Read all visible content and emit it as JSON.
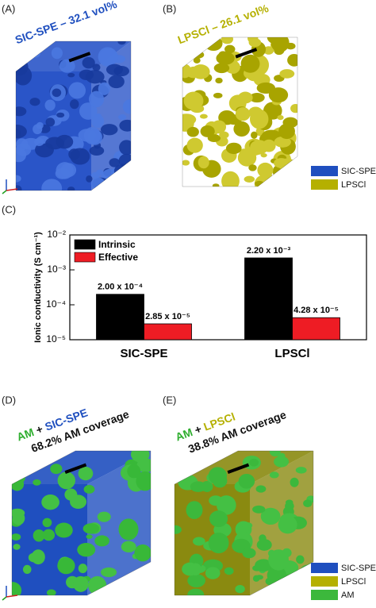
{
  "chart_data": {
    "type": "bar",
    "panel_label": "(C)",
    "y_label": "Ionic conductivity (S cm⁻¹)",
    "log_scale": true,
    "categories": [
      "SIC-SPE",
      "LPSCl"
    ],
    "series": [
      {
        "name": "Intrinsic",
        "color": "#000000",
        "values": [
          0.0002,
          0.0022
        ],
        "value_labels": [
          "2.00 x 10⁻⁴",
          "2.20 x 10⁻³"
        ]
      },
      {
        "name": "Effective",
        "color": "#ee1c24",
        "values": [
          2.85e-05,
          4.28e-05
        ],
        "value_labels": [
          "2.85 x 10⁻⁵",
          "4.28 x 10⁻⁵"
        ]
      }
    ],
    "ylim": [
      1e-05,
      0.01
    ],
    "yticks": [
      {
        "value": 1e-05,
        "label": "10⁻⁵"
      },
      {
        "value": 0.0001,
        "label": "10⁻⁴"
      },
      {
        "value": 0.001,
        "label": "10⁻³"
      },
      {
        "value": 0.01,
        "label": "10⁻²"
      }
    ],
    "legend": "upper left"
  },
  "panels": {
    "a": {
      "label": "(A)",
      "title": "SIC-SPE – 32.1 vol%"
    },
    "b": {
      "label": "(B)",
      "title": "LPSCl – 26.1 vol%"
    },
    "legend_top": [
      "SIC-SPE",
      "LPSCl"
    ],
    "d": {
      "label": "(D)",
      "title_parts": [
        "AM",
        "+",
        "SIC-SPE"
      ],
      "coverage": "68.2% AM coverage"
    },
    "e": {
      "label": "(E)",
      "title_parts": [
        "AM",
        "+",
        "LPSCl"
      ],
      "coverage": "38.8% AM coverage"
    },
    "legend_bottom": [
      "SIC-SPE",
      "LPSCl",
      "AM"
    ]
  }
}
